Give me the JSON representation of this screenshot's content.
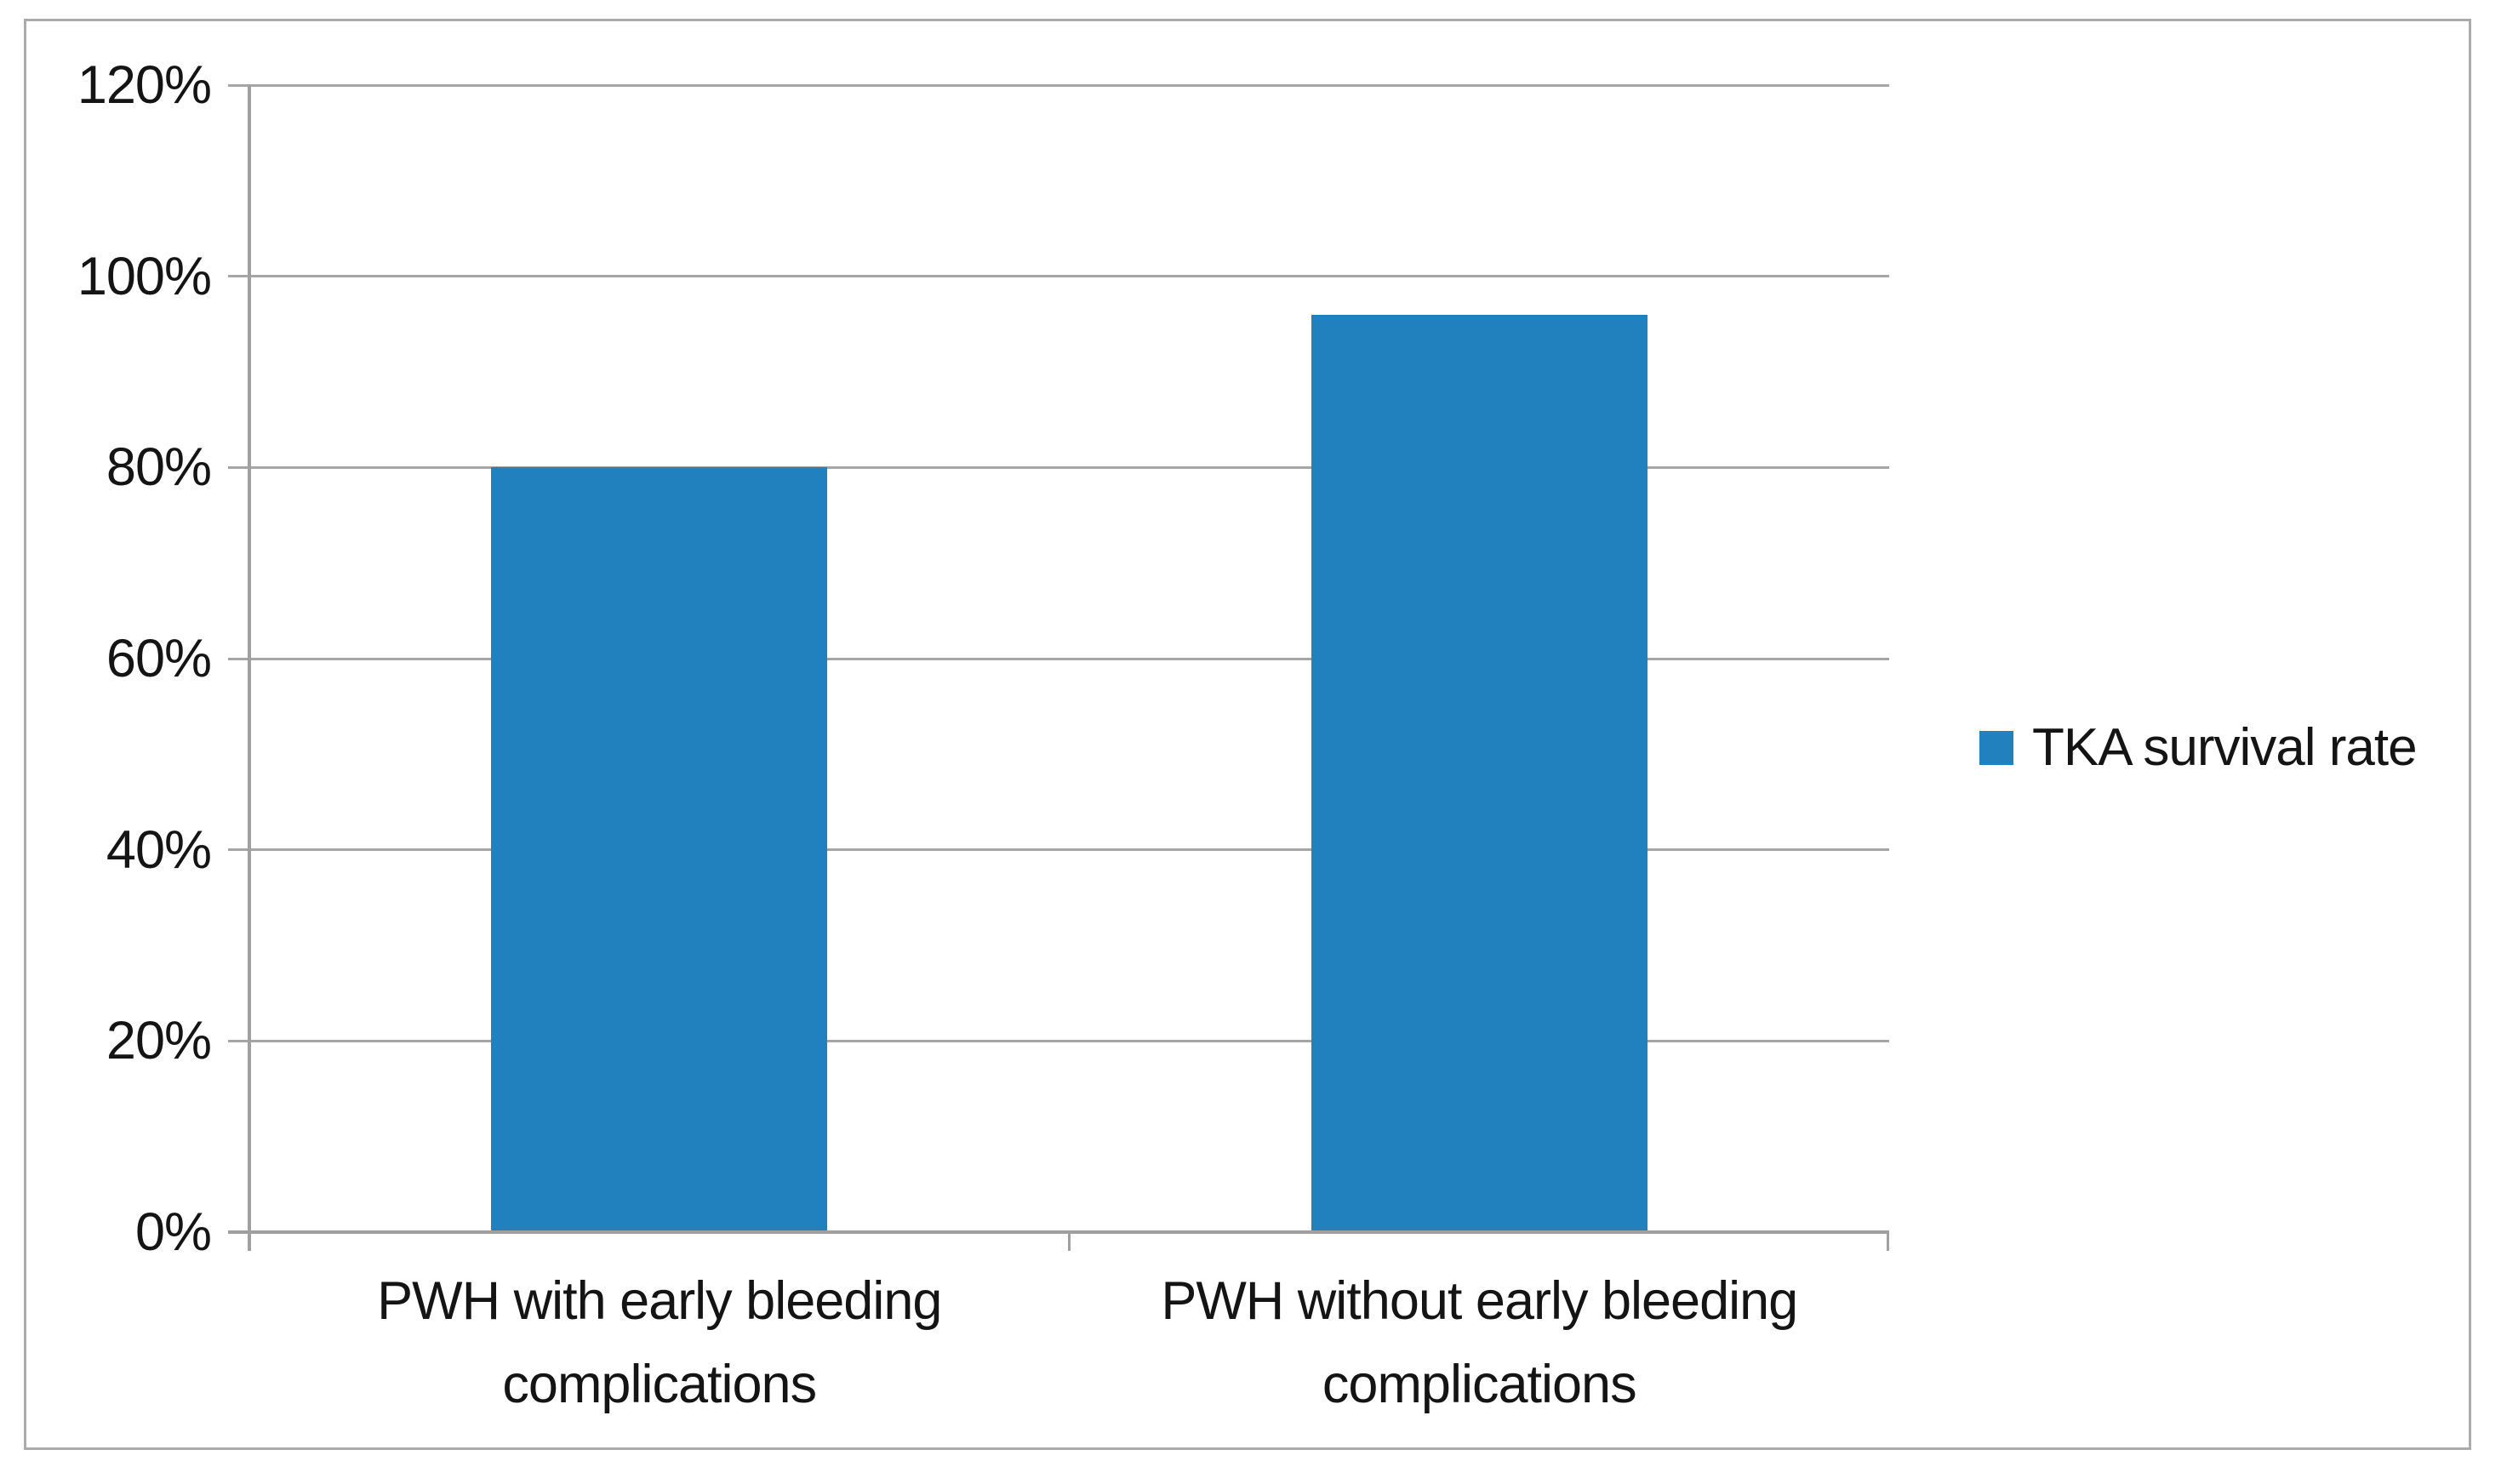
{
  "chart_data": {
    "type": "bar",
    "title": "",
    "categories": [
      "PWH with early bleeding complications",
      "PWH without early bleeding complications"
    ],
    "series": [
      {
        "name": "TKA survival rate",
        "values": [
          0.8,
          0.96
        ]
      }
    ],
    "value_format": "percent",
    "xlabel": "",
    "ylabel": "",
    "ylim": [
      0,
      1.2
    ],
    "y_ticks": [
      "0%",
      "20%",
      "40%",
      "60%",
      "80%",
      "100%",
      "120%"
    ],
    "y_tick_values": [
      0,
      0.2,
      0.4,
      0.6,
      0.8,
      1.0,
      1.2
    ],
    "grid": true,
    "legend_position": "right",
    "colors": {
      "bar": "#2181BE",
      "gridline": "#A6A6A6",
      "axis": "#A0A0A0",
      "frame_border": "#ABABAB",
      "text": "#141414"
    }
  },
  "legend": {
    "items": [
      {
        "label": "TKA survival rate",
        "swatch_color": "#2181BE"
      }
    ]
  }
}
